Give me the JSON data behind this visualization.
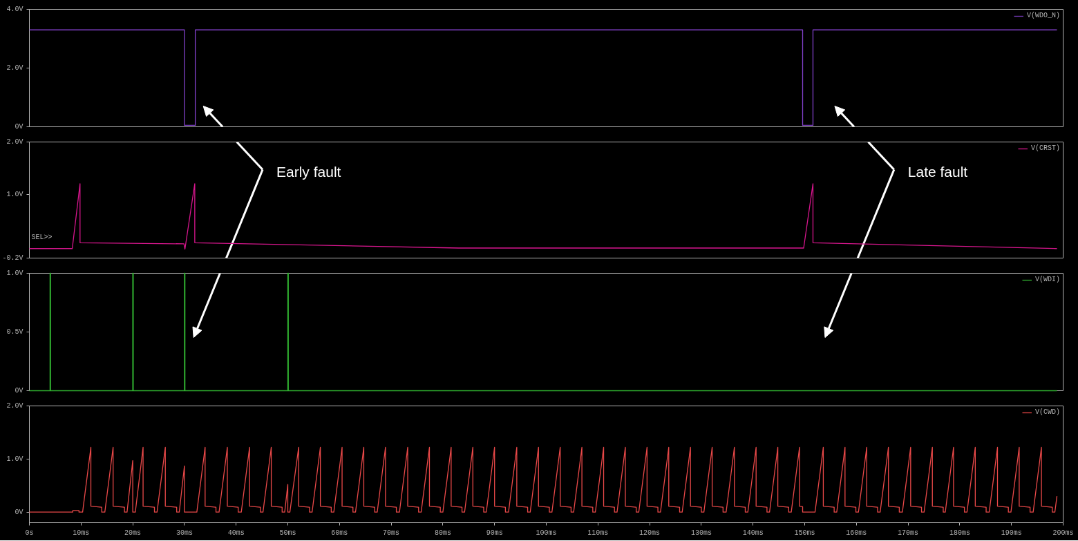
{
  "chart_data": [
    {
      "type": "line",
      "xlim": [
        0,
        200
      ],
      "tick_labels": "y",
      "legend": "top right",
      "ylim": [
        0,
        4
      ],
      "yticks": [
        {
          "value": 0,
          "label": "0V"
        },
        {
          "value": 2,
          "label": "2.0V"
        },
        {
          "value": 4,
          "label": "4.0V"
        }
      ],
      "series": [
        {
          "name": "V(WDO_N)",
          "color": "#8040c8",
          "x": [
            0,
            30.0,
            30.0,
            32.1,
            32.1,
            149.6,
            149.6,
            151.6,
            151.6,
            198.8
          ],
          "values": [
            3.3,
            3.3,
            0.05,
            0.05,
            3.3,
            3.3,
            0.05,
            0.05,
            3.3,
            3.3
          ]
        }
      ]
    },
    {
      "type": "line",
      "xlim": [
        0,
        200
      ],
      "tick_labels": "y",
      "legend": "top right",
      "ylim": [
        -0.2,
        2.0
      ],
      "yticks": [
        {
          "value": -0.2,
          "label": "-0.2V"
        },
        {
          "value": 1,
          "label": "1.0V"
        },
        {
          "value": 2,
          "label": "2.0V"
        }
      ],
      "annotations": [
        "SEL>>",
        "Early fault",
        "Late fault"
      ],
      "series": [
        {
          "name": "V(CRST)",
          "color": "#d8168e",
          "x": [
            0,
            8.3,
            9.8,
            9.8,
            29.9,
            30.1,
            32.0,
            32.0,
            83.0,
            149.8,
            151.6,
            151.6,
            198.8
          ],
          "values": [
            -0.02,
            -0.02,
            1.21,
            0.09,
            0.07,
            -0.03,
            1.21,
            0.09,
            -0.01,
            -0.01,
            1.21,
            0.09,
            -0.02
          ]
        }
      ]
    },
    {
      "type": "line",
      "xlim": [
        0,
        200
      ],
      "tick_labels": "y",
      "legend": "top right",
      "ylim": [
        0,
        1
      ],
      "yticks": [
        {
          "value": 0,
          "label": "0V"
        },
        {
          "value": 0.5,
          "label": "0.5V"
        },
        {
          "value": 1,
          "label": "1.0V"
        }
      ],
      "series": [
        {
          "name": "V(WDI)",
          "color": "#30b030",
          "x": [
            0,
            4.0,
            4.0,
            4.1,
            4.1,
            20.0,
            20.0,
            20.1,
            20.1,
            30.0,
            30.0,
            30.1,
            30.1,
            50.0,
            50.0,
            50.1,
            50.1,
            198.8
          ],
          "values": [
            0,
            0,
            1,
            1,
            0,
            0,
            1,
            1,
            0,
            0,
            1,
            1,
            0,
            0,
            1,
            1,
            0,
            0
          ]
        }
      ]
    },
    {
      "type": "line",
      "xlim": [
        0,
        200
      ],
      "legend": "top right",
      "ylim": [
        -0.2,
        2.0
      ],
      "xticks": [
        {
          "value": 0,
          "label": "0s"
        },
        {
          "value": 10,
          "label": "10ms"
        },
        {
          "value": 20,
          "label": "20ms"
        },
        {
          "value": 30,
          "label": "30ms"
        },
        {
          "value": 40,
          "label": "40ms"
        },
        {
          "value": 50,
          "label": "50ms"
        },
        {
          "value": 60,
          "label": "60ms"
        },
        {
          "value": 70,
          "label": "70ms"
        },
        {
          "value": 80,
          "label": "80ms"
        },
        {
          "value": 90,
          "label": "90ms"
        },
        {
          "value": 100,
          "label": "100ms"
        },
        {
          "value": 110,
          "label": "110ms"
        },
        {
          "value": 120,
          "label": "120ms"
        },
        {
          "value": 130,
          "label": "130ms"
        },
        {
          "value": 140,
          "label": "140ms"
        },
        {
          "value": 150,
          "label": "150ms"
        },
        {
          "value": 160,
          "label": "160ms"
        },
        {
          "value": 170,
          "label": "170ms"
        },
        {
          "value": 180,
          "label": "180ms"
        },
        {
          "value": 190,
          "label": "190ms"
        },
        {
          "value": 200,
          "label": "200ms"
        }
      ],
      "yticks": [
        {
          "value": 0,
          "label": "0V"
        },
        {
          "value": 1,
          "label": "1.0V"
        },
        {
          "value": 2,
          "label": "2.0V"
        }
      ],
      "series": [
        {
          "name": "V(CWD)",
          "color": "#e84848",
          "x": [
            0,
            8.4,
            8.4,
            9.6,
            9.6,
            10.3,
            11.9,
            11.9,
            14.0,
            14.0,
            14.6,
            16.2,
            16.2,
            18.4,
            18.4,
            18.9,
            20.0,
            20.0,
            20.5,
            22.0,
            22.0,
            24.2,
            24.2,
            24.7,
            26.3,
            26.3,
            28.5,
            28.5,
            29.0,
            30.0,
            30.0,
            32.4,
            34.0,
            34.0,
            36.1,
            36.1,
            36.7,
            38.3,
            38.3,
            40.4,
            40.4,
            41.0,
            42.6,
            42.6,
            44.7,
            44.7,
            45.2,
            46.8,
            46.8,
            48.9,
            48.9,
            49.4,
            50.0,
            50.0,
            50.4,
            52.1,
            52.1,
            54.2,
            54.2,
            54.7,
            56.3,
            56.3,
            58.4,
            58.4,
            58.9,
            60.5,
            60.5,
            62.6,
            62.6,
            63.1,
            64.7,
            64.7,
            66.8,
            66.8,
            67.3,
            68.9,
            68.9,
            71.0,
            71.0,
            71.6,
            73.2,
            73.2,
            75.3,
            75.3,
            75.8,
            77.4,
            77.4,
            79.5,
            79.5,
            80.0,
            81.6,
            81.6,
            83.7,
            83.7,
            84.2,
            85.8,
            85.8,
            87.9,
            87.9,
            88.4,
            90.0,
            90.0,
            92.1,
            92.1,
            92.7,
            94.3,
            94.3,
            96.4,
            96.4,
            96.9,
            98.5,
            98.5,
            100.6,
            100.6,
            101.1,
            102.7,
            102.7,
            104.8,
            104.8,
            105.3,
            106.9,
            106.9,
            109.0,
            109.0,
            109.5,
            111.1,
            111.1,
            113.2,
            113.2,
            113.7,
            115.3,
            115.3,
            117.4,
            117.4,
            117.9,
            119.5,
            119.5,
            121.6,
            121.6,
            122.1,
            123.7,
            123.7,
            125.8,
            125.8,
            126.3,
            127.9,
            127.9,
            130.0,
            130.0,
            130.5,
            132.1,
            132.1,
            134.2,
            134.2,
            134.8,
            136.4,
            136.4,
            138.5,
            138.5,
            139.0,
            140.6,
            140.6,
            142.7,
            142.7,
            143.2,
            144.8,
            144.8,
            146.9,
            146.9,
            147.4,
            149.0,
            149.0,
            149.6,
            149.6,
            152.0,
            153.6,
            153.6,
            155.7,
            155.7,
            156.2,
            157.8,
            157.8,
            159.9,
            159.9,
            160.4,
            162.0,
            162.0,
            164.1,
            164.1,
            164.6,
            166.2,
            166.2,
            168.3,
            168.3,
            168.9,
            170.5,
            170.5,
            172.6,
            172.6,
            173.1,
            174.7,
            174.7,
            176.8,
            176.8,
            177.2,
            178.8,
            178.8,
            180.9,
            180.9,
            181.4,
            183.0,
            183.0,
            185.1,
            185.1,
            185.7,
            187.3,
            187.3,
            189.4,
            189.4,
            189.9,
            191.5,
            191.5,
            193.6,
            193.6,
            194.2,
            195.8,
            195.8,
            197.9,
            197.9,
            198.4,
            198.8
          ],
          "values": [
            0,
            0,
            0.03,
            0.03,
            0,
            0,
            1.22,
            0.11,
            0.09,
            0,
            0,
            1.22,
            0.11,
            0.09,
            0,
            0,
            0.97,
            0,
            0,
            1.22,
            0.11,
            0.09,
            0,
            0,
            1.22,
            0.11,
            0.09,
            0,
            0,
            0.87,
            0,
            0,
            1.22,
            0.11,
            0.09,
            0,
            0,
            1.22,
            0.11,
            0.09,
            0,
            0,
            1.22,
            0.11,
            0.09,
            0,
            0,
            1.22,
            0.11,
            0.09,
            0,
            0,
            0.52,
            0,
            0,
            1.22,
            0.11,
            0.09,
            0,
            0,
            1.22,
            0.11,
            0.09,
            0,
            0,
            1.22,
            0.11,
            0.09,
            0,
            0,
            1.22,
            0.11,
            0.09,
            0,
            0,
            1.22,
            0.11,
            0.09,
            0,
            0,
            1.22,
            0.11,
            0.09,
            0,
            0,
            1.22,
            0.11,
            0.09,
            0,
            0,
            1.22,
            0.11,
            0.09,
            0,
            0,
            1.22,
            0.11,
            0.09,
            0,
            0,
            1.22,
            0.11,
            0.09,
            0,
            0,
            1.22,
            0.11,
            0.09,
            0,
            0,
            1.22,
            0.11,
            0.09,
            0,
            0,
            1.22,
            0.11,
            0.09,
            0,
            0,
            1.22,
            0.11,
            0.09,
            0,
            0,
            1.22,
            0.11,
            0.09,
            0,
            0,
            1.22,
            0.11,
            0.09,
            0,
            0,
            1.22,
            0.11,
            0.09,
            0,
            0,
            1.22,
            0.11,
            0.09,
            0,
            0,
            1.22,
            0.11,
            0.09,
            0,
            0,
            1.22,
            0.11,
            0.09,
            0,
            0,
            1.22,
            0.11,
            0.09,
            0,
            0,
            1.22,
            0.11,
            0.09,
            0,
            0,
            1.22,
            0.11,
            0.09,
            0,
            0,
            1.22,
            0.11,
            0.1,
            0,
            0,
            1.22,
            0.11,
            0.09,
            0,
            0,
            1.22,
            0.11,
            0.09,
            0,
            0,
            1.22,
            0.11,
            0.09,
            0,
            0,
            1.22,
            0.11,
            0.09,
            0,
            0,
            1.22,
            0.11,
            0.09,
            0,
            0,
            1.22,
            0.11,
            0.09,
            0,
            0,
            1.22,
            0.11,
            0.09,
            0,
            0,
            1.22,
            0.11,
            0.09,
            0,
            0,
            1.22,
            0.11,
            0.09,
            0,
            0,
            1.22,
            0.11,
            0.09,
            0,
            0,
            1.22,
            0.11,
            0.09,
            0,
            0,
            0.3
          ]
        }
      ]
    }
  ]
}
